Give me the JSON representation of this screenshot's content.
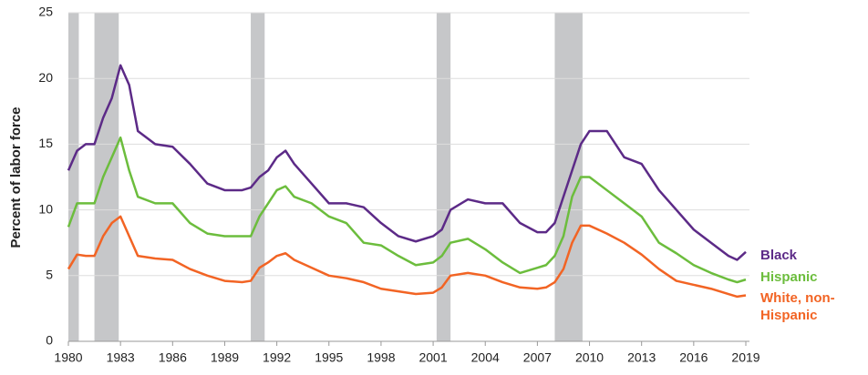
{
  "chart_data": {
    "type": "line",
    "ylabel": "Percent of labor force",
    "xlim": [
      1980,
      2019
    ],
    "ylim": [
      0,
      25
    ],
    "xticks": [
      1980,
      1983,
      1986,
      1989,
      1992,
      1995,
      1998,
      2001,
      2004,
      2007,
      2010,
      2013,
      2016,
      2019
    ],
    "yticks": [
      0,
      5,
      10,
      15,
      20,
      25
    ],
    "grid": true,
    "recessions": [
      [
        1980.0,
        1980.6
      ],
      [
        1981.5,
        1982.9
      ],
      [
        1990.5,
        1991.3
      ],
      [
        2001.2,
        2002.0
      ],
      [
        2008.0,
        2009.6
      ]
    ],
    "recession_color": "#c6c7c9",
    "x": [
      1980,
      1980.5,
      1981,
      1981.5,
      1982,
      1982.5,
      1983,
      1983.5,
      1984,
      1985,
      1986,
      1987,
      1988,
      1989,
      1990,
      1990.5,
      1991,
      1991.5,
      1992,
      1992.5,
      1993,
      1994,
      1995,
      1996,
      1997,
      1998,
      1999,
      2000,
      2001,
      2001.5,
      2002,
      2003,
      2004,
      2005,
      2006,
      2007,
      2007.5,
      2008,
      2008.5,
      2009,
      2009.5,
      2010,
      2011,
      2012,
      2013,
      2014,
      2015,
      2016,
      2017,
      2018,
      2018.5,
      2019
    ],
    "series": [
      {
        "name": "Black",
        "color": "#5c2a87",
        "values": [
          13,
          14.5,
          15,
          15,
          17,
          18.5,
          21,
          19.5,
          16,
          15,
          14.8,
          13.5,
          12,
          11.5,
          11.5,
          11.7,
          12.5,
          13,
          14,
          14.5,
          13.5,
          12,
          10.5,
          10.5,
          10.2,
          9,
          8,
          7.6,
          8,
          8.5,
          10,
          10.8,
          10.5,
          10.5,
          9,
          8.3,
          8.3,
          9,
          11,
          13,
          15,
          16,
          16,
          14,
          13.5,
          11.5,
          10,
          8.5,
          7.5,
          6.5,
          6.2,
          6.8
        ]
      },
      {
        "name": "Hispanic",
        "color": "#6cbd3d",
        "values": [
          8.7,
          10.5,
          10.5,
          10.5,
          12.5,
          14,
          15.5,
          13,
          11,
          10.5,
          10.5,
          9,
          8.2,
          8,
          8,
          8,
          9.5,
          10.5,
          11.5,
          11.8,
          11,
          10.5,
          9.5,
          9,
          7.5,
          7.3,
          6.5,
          5.8,
          6,
          6.5,
          7.5,
          7.8,
          7,
          6,
          5.2,
          5.6,
          5.8,
          6.5,
          8,
          11,
          12.5,
          12.5,
          11.5,
          10.5,
          9.5,
          7.5,
          6.7,
          5.8,
          5.2,
          4.7,
          4.5,
          4.7
        ]
      },
      {
        "name": "White, non-Hispanic",
        "color": "#f26424",
        "values": [
          5.5,
          6.6,
          6.5,
          6.5,
          8,
          9,
          9.5,
          8,
          6.5,
          6.3,
          6.2,
          5.5,
          5,
          4.6,
          4.5,
          4.6,
          5.6,
          6,
          6.5,
          6.7,
          6.2,
          5.6,
          5,
          4.8,
          4.5,
          4,
          3.8,
          3.6,
          3.7,
          4.1,
          5,
          5.2,
          5,
          4.5,
          4.1,
          4,
          4.1,
          4.5,
          5.5,
          7.5,
          8.8,
          8.8,
          8.2,
          7.5,
          6.6,
          5.5,
          4.6,
          4.3,
          4,
          3.6,
          3.4,
          3.5
        ]
      }
    ]
  }
}
